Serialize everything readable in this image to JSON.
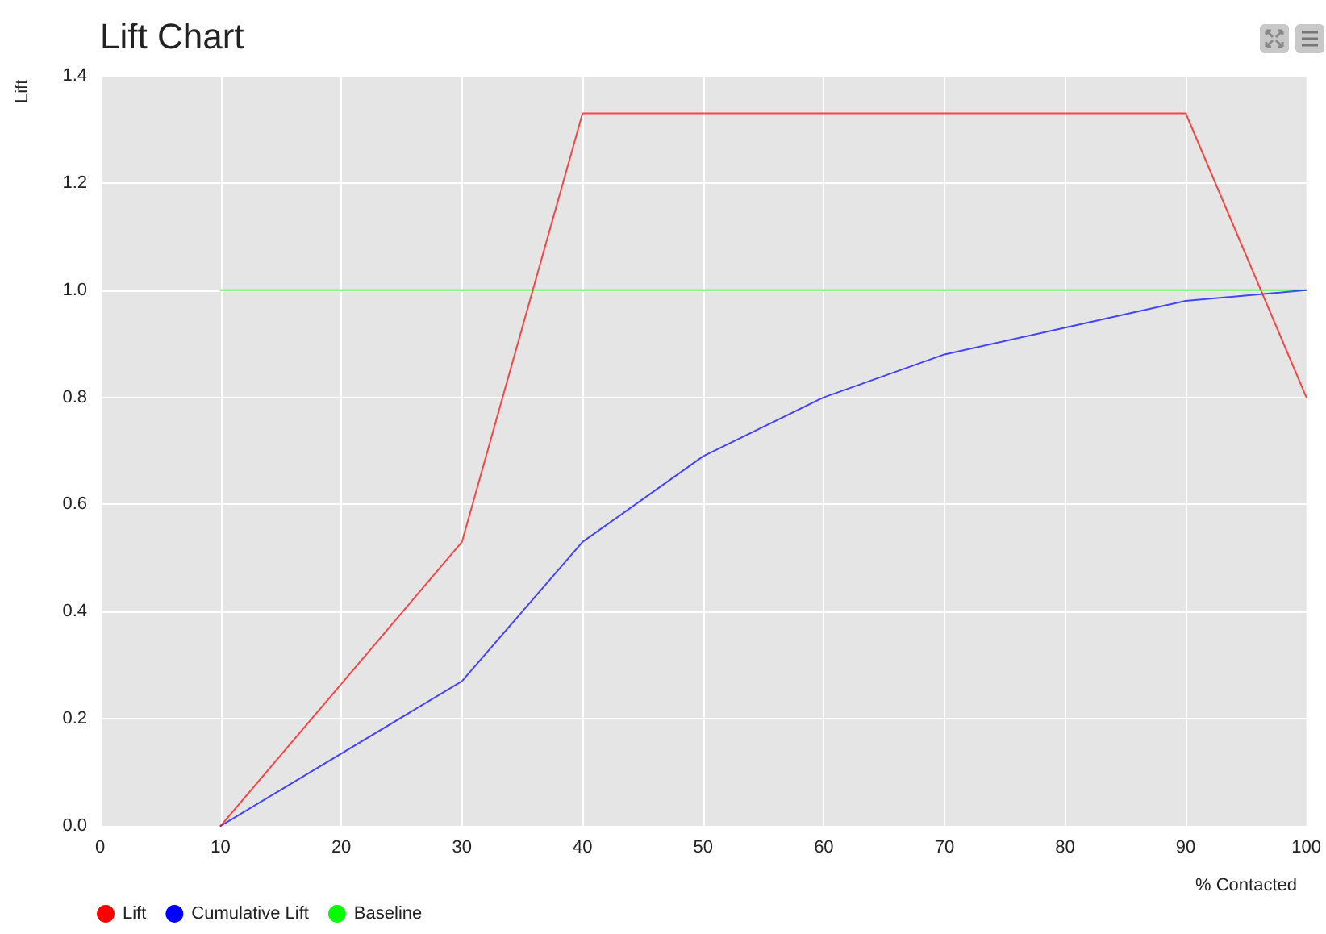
{
  "chart_data": {
    "type": "line",
    "title": "Lift Chart",
    "xlabel": "% Contacted",
    "ylabel": "Lift",
    "xlim": [
      0,
      100
    ],
    "xticks": [
      0,
      10,
      20,
      30,
      40,
      50,
      60,
      70,
      80,
      90,
      100
    ],
    "ylim": [
      0,
      1.4
    ],
    "yticks": [
      {
        "value": 0,
        "label": "0.0"
      },
      {
        "value": 0.2,
        "label": "0.2"
      },
      {
        "value": 0.4,
        "label": "0.4"
      },
      {
        "value": 0.6,
        "label": "0.6"
      },
      {
        "value": 0.8,
        "label": "0.8"
      },
      {
        "value": 1.0,
        "label": "1.0"
      },
      {
        "value": 1.2,
        "label": "1.2"
      },
      {
        "value": 1.4,
        "label": "1.4"
      }
    ],
    "grid": true,
    "legend": "bottom left",
    "marker": "none",
    "line_style": "solid",
    "series": [
      {
        "name": "Lift",
        "color": "#ff0000",
        "x": [
          10,
          30,
          40,
          50,
          60,
          70,
          80,
          90,
          100
        ],
        "values": [
          0,
          0.53,
          1.33,
          1.33,
          1.33,
          1.33,
          1.33,
          1.33,
          0.8
        ]
      },
      {
        "name": "Cumulative Lift",
        "color": "#0000ff",
        "x": [
          10,
          30,
          40,
          50,
          60,
          70,
          80,
          90,
          100
        ],
        "values": [
          0,
          0.27,
          0.53,
          0.69,
          0.8,
          0.88,
          0.93,
          0.98,
          1.0
        ]
      },
      {
        "name": "Baseline",
        "color": "#00ff00",
        "x": [
          10,
          100
        ],
        "values": [
          1.0,
          1.0
        ]
      }
    ]
  }
}
